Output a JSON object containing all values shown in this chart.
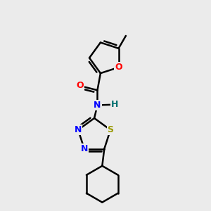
{
  "bg_color": "#ebebeb",
  "atom_colors": {
    "O": "#ff0000",
    "N": "#0000ff",
    "S": "#999900",
    "C": "#000000",
    "H": "#007070"
  },
  "bond_color": "#000000",
  "bond_width": 1.8,
  "figsize": [
    3.0,
    3.0
  ],
  "dpi": 100
}
